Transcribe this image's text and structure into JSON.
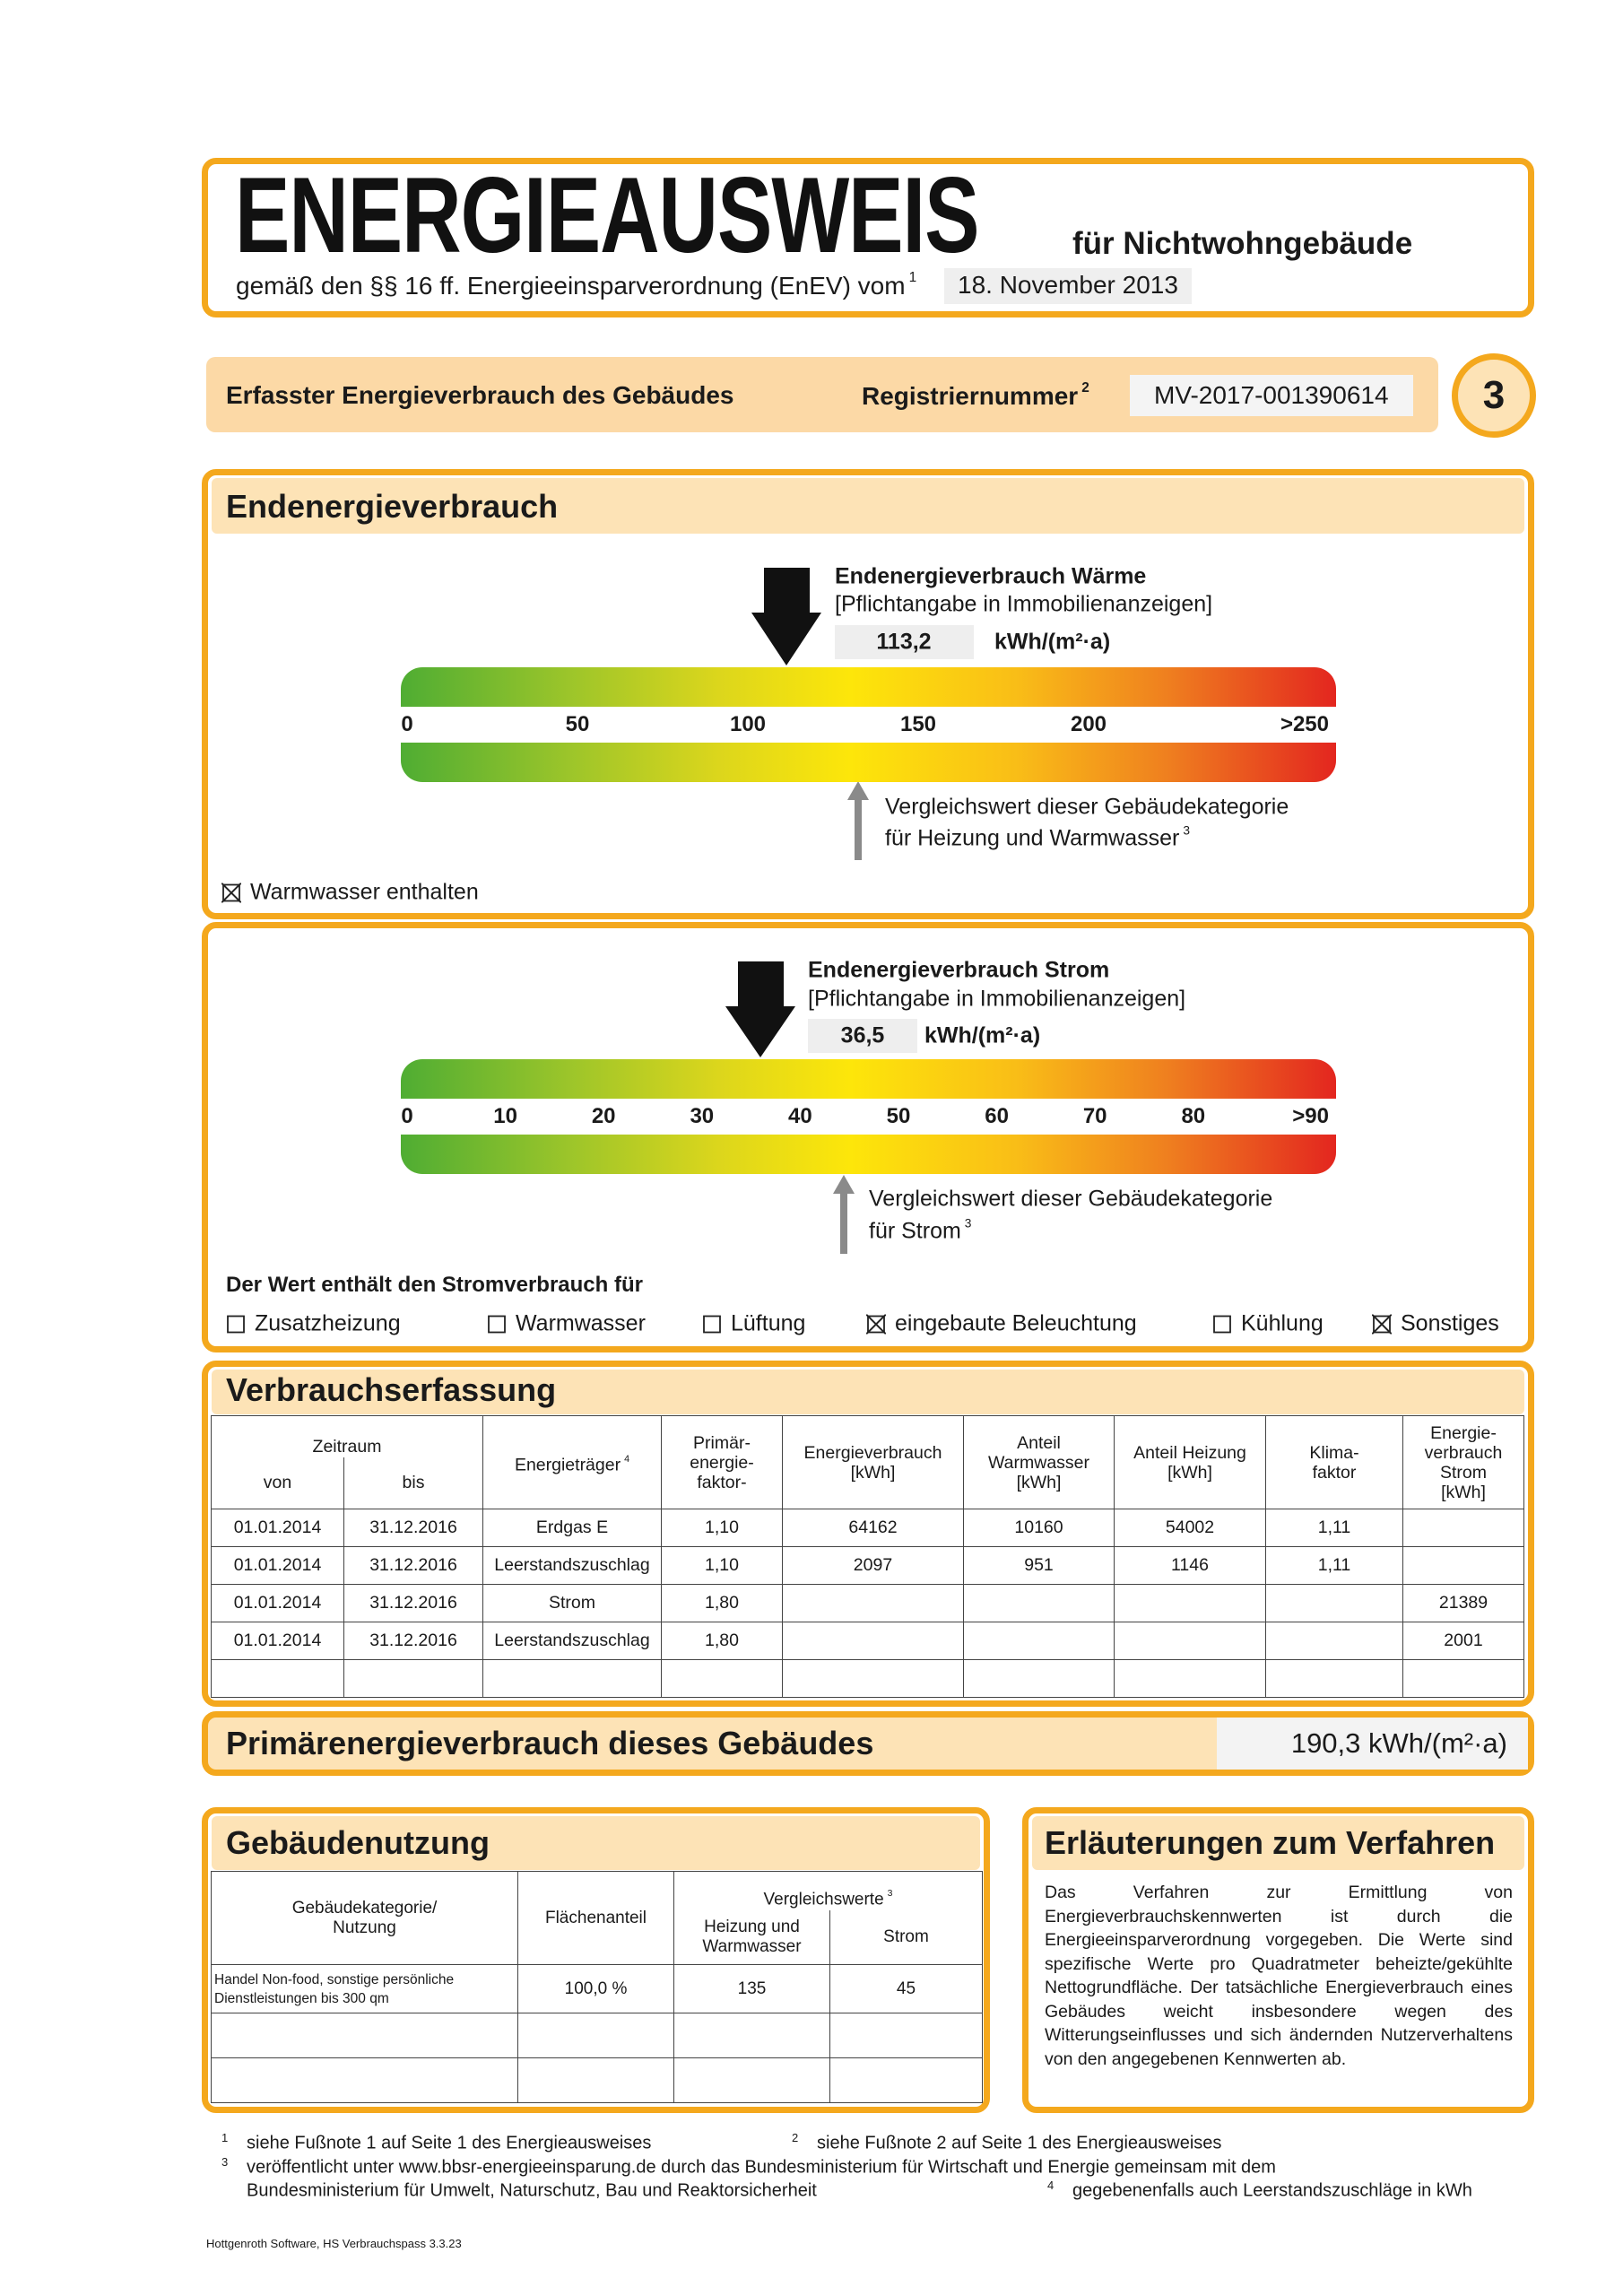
{
  "header": {
    "title": "ENERGIEAUSWEIS",
    "building_type": "für Nichtwohngebäude",
    "legal_basis": "gemäß den §§ 16 ff. Energieeinsparverordnung (EnEV) vom",
    "legal_basis_footnote": "1",
    "enev_date": "18. November 2013"
  },
  "registration": {
    "heading": "Erfasster Energieverbrauch des Gebäudes",
    "label": "Registriernummer",
    "label_footnote": "2",
    "number": "MV-2017-001390614",
    "page_number": "3"
  },
  "final_energy_heat": {
    "section_title": "Endenergieverbrauch",
    "indicator_title": "Endenergieverbrauch Wärme",
    "indicator_note": "[Pflichtangabe in Immobilienanzeigen]",
    "value": "113,2",
    "unit": "kWh/(m²·a)",
    "scale_labels": [
      "0",
      "50",
      "100",
      "150",
      "200",
      ">250"
    ],
    "comparison_lines": [
      "Vergleichswert dieser Gebäudekategorie",
      "für Heizung und Warmwasser"
    ],
    "comparison_footnote": "3",
    "hot_water_included": {
      "checked": true,
      "label": "Warmwasser enthalten"
    }
  },
  "final_energy_power": {
    "indicator_title": "Endenergieverbrauch Strom",
    "indicator_note": "[Pflichtangabe in Immobilienanzeigen]",
    "value": "36,5",
    "unit": "kWh/(m²·a)",
    "scale_labels": [
      "0",
      "10",
      "20",
      "30",
      "40",
      "50",
      "60",
      "70",
      "80",
      ">90"
    ],
    "comparison_lines": [
      "Vergleichswert dieser Gebäudekategorie",
      "für Strom"
    ],
    "comparison_footnote": "3",
    "includes_heading": "Der Wert enthält den Stromverbrauch für",
    "includes": [
      {
        "label": "Zusatzheizung",
        "checked": false
      },
      {
        "label": "Warmwasser",
        "checked": false
      },
      {
        "label": "Lüftung",
        "checked": false
      },
      {
        "label": "eingebaute Beleuchtung",
        "checked": true
      },
      {
        "label": "Kühlung",
        "checked": false
      },
      {
        "label": "Sonstiges",
        "checked": true
      }
    ]
  },
  "consumption_record": {
    "title": "Verbrauchserfassung",
    "period": {
      "label": "Zeitraum",
      "from": "von",
      "to": "bis"
    },
    "columns": [
      {
        "lines": [
          "Energieträger"
        ],
        "footnote": "4"
      },
      {
        "lines": [
          "Primär-",
          "energie-",
          "faktor-"
        ]
      },
      {
        "lines": [
          "Energieverbrauch",
          "[kWh]"
        ]
      },
      {
        "lines": [
          "Anteil",
          "Warmwasser",
          "[kWh]"
        ]
      },
      {
        "lines": [
          "Anteil Heizung",
          "[kWh]"
        ]
      },
      {
        "lines": [
          "Klima-",
          "faktor"
        ]
      },
      {
        "lines": [
          "Energie-",
          "verbrauch",
          "Strom",
          "[kWh]"
        ]
      }
    ],
    "rows": [
      [
        "01.01.2014",
        "31.12.2016",
        "Erdgas E",
        "1,10",
        "64162",
        "10160",
        "54002",
        "1,11",
        null
      ],
      [
        "01.01.2014",
        "31.12.2016",
        "Leerstandszuschlag",
        "1,10",
        "2097",
        "951",
        "1146",
        "1,11",
        null
      ],
      [
        "01.01.2014",
        "31.12.2016",
        "Strom",
        "1,80",
        null,
        null,
        null,
        null,
        "21389"
      ],
      [
        "01.01.2014",
        "31.12.2016",
        "Leerstandszuschlag",
        "1,80",
        null,
        null,
        null,
        null,
        "2001"
      ]
    ]
  },
  "primary_energy": {
    "title": "Primärenergieverbrauch dieses Gebäudes",
    "value": "190,3 kWh/(m²·a)"
  },
  "building_use": {
    "title": "Gebäudenutzung",
    "columns": {
      "category": {
        "lines": [
          "Gebäudekategorie/",
          "Nutzung"
        ]
      },
      "share": {
        "lines": [
          "Flächenanteil"
        ]
      },
      "comparison": {
        "lines": [
          "Vergleichswerte"
        ],
        "footnote": "3"
      },
      "heating": {
        "lines": [
          "Heizung und",
          "Warmwasser"
        ]
      },
      "power": {
        "lines": [
          "Strom"
        ]
      }
    },
    "rows": [
      [
        "Handel Non-food, sonstige persönliche Dienstleistungen bis 300 qm",
        "100,0 %",
        "135",
        "45"
      ]
    ]
  },
  "explanation": {
    "title": "Erläuterungen zum Verfahren",
    "text": "Das Verfahren zur Ermittlung von Energieverbrauchskennwerten ist durch die Energieeinsparverordnung vorgegeben. Die Werte sind spezifische Werte pro Quadratmeter beheizte/gekühlte Nettogrundfläche. Der tatsächliche Energieverbrauch eines Gebäudes weicht insbesondere wegen des Witterungseinflusses und sich ändernden Nutzerverhaltens von den angegebenen Kennwerten ab."
  },
  "footnotes": [
    {
      "mark": "1",
      "lines": [
        "siehe Fußnote 1 auf Seite 1 des Energieausweises"
      ]
    },
    {
      "mark": "2",
      "lines": [
        "siehe Fußnote 2 auf Seite 1 des Energieausweises"
      ]
    },
    {
      "mark": "3",
      "lines": [
        "veröffentlicht unter www.bbsr-energieeinsparung.de durch das Bundesministerium für Wirtschaft und Energie gemeinsam mit dem",
        "Bundesministerium für Umwelt, Naturschutz, Bau und Reaktorsicherheit"
      ]
    },
    {
      "mark": "4",
      "lines": [
        "gegebenenfalls auch Leerstandszuschläge in kWh"
      ]
    }
  ],
  "footer": "Hottgenroth Software, HS Verbrauchspass 3.3.23"
}
